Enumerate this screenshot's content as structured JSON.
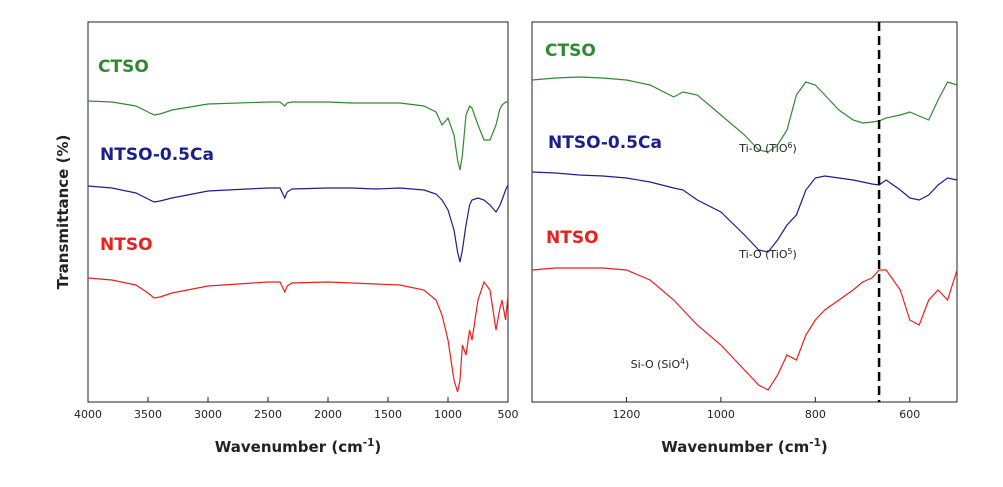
{
  "chart_data": [
    {
      "type": "line",
      "xlabel": [
        "Wavenumber (cm",
        "-1",
        ")"
      ],
      "ylabel": "Transmittance (%)",
      "xlim": [
        4000,
        500
      ],
      "xticks": [
        4000,
        3500,
        3000,
        2500,
        2000,
        1500,
        1000,
        500
      ],
      "ylim": [
        0,
        380
      ],
      "x": [
        4000,
        3800,
        3600,
        3500,
        3450,
        3400,
        3300,
        3000,
        2500,
        2400,
        2360,
        2340,
        2300,
        2000,
        1800,
        1600,
        1400,
        1200,
        1100,
        1050,
        1000,
        950,
        920,
        900,
        880,
        850,
        820,
        800,
        750,
        700,
        650,
        600,
        570,
        550,
        520,
        500
      ],
      "series": [
        {
          "name": "CTSO",
          "color": "#2e8b2e",
          "values": [
            301,
            300,
            296,
            290,
            287,
            288,
            292,
            298,
            300,
            300,
            296,
            299,
            300,
            300,
            299,
            299,
            299,
            296,
            290,
            277,
            284,
            267,
            242,
            232,
            247,
            287,
            296,
            294,
            277,
            262,
            262,
            277,
            292,
            297,
            300,
            300
          ]
        },
        {
          "name": "NTSO-0.5Ca",
          "color": "#1a1f8c",
          "values": [
            216,
            214,
            209,
            203,
            200,
            201,
            204,
            211,
            214,
            214,
            204,
            210,
            213,
            214,
            214,
            213,
            214,
            212,
            208,
            202,
            192,
            172,
            150,
            140,
            152,
            177,
            197,
            202,
            204,
            202,
            197,
            190,
            196,
            202,
            212,
            217
          ]
        },
        {
          "name": "NTSO",
          "color": "#e8201e",
          "values": [
            124,
            122,
            117,
            109,
            104,
            105,
            109,
            116,
            120,
            120,
            110,
            116,
            119,
            120,
            119,
            118,
            117,
            112,
            102,
            87,
            62,
            22,
            10,
            22,
            57,
            47,
            72,
            62,
            102,
            120,
            112,
            72,
            92,
            102,
            82,
            107
          ]
        }
      ]
    },
    {
      "type": "line",
      "xlabel": [
        "Wavenumber (cm",
        "-1",
        ")"
      ],
      "xlim": [
        1400,
        500
      ],
      "xticks": [
        1200,
        1000,
        800,
        600
      ],
      "ylim": [
        0,
        380
      ],
      "vline": 665,
      "x": [
        1400,
        1350,
        1300,
        1250,
        1200,
        1150,
        1100,
        1080,
        1050,
        1000,
        950,
        920,
        900,
        880,
        860,
        840,
        820,
        800,
        780,
        750,
        720,
        700,
        680,
        665,
        650,
        620,
        600,
        580,
        560,
        540,
        520,
        500
      ],
      "series": [
        {
          "name": "CTSO",
          "color": "#2e8b2e",
          "values": [
            322,
            324,
            325,
            324,
            322,
            317,
            305,
            310,
            307,
            287,
            267,
            252,
            250,
            257,
            272,
            307,
            320,
            317,
            307,
            292,
            282,
            279,
            280,
            281,
            284,
            287,
            290,
            286,
            282,
            302,
            320,
            317
          ]
        },
        {
          "name": "NTSO-0.5Ca",
          "color": "#1a1f8c",
          "values": [
            230,
            229,
            227,
            226,
            224,
            220,
            214,
            212,
            202,
            190,
            167,
            152,
            150,
            162,
            177,
            187,
            212,
            224,
            226,
            224,
            222,
            220,
            218,
            217,
            222,
            212,
            204,
            202,
            207,
            217,
            224,
            222
          ]
        },
        {
          "name": "NTSO",
          "color": "#e8201e",
          "values": [
            132,
            134,
            134,
            134,
            132,
            122,
            102,
            92,
            77,
            57,
            32,
            17,
            12,
            27,
            47,
            42,
            67,
            82,
            92,
            102,
            112,
            120,
            124,
            132,
            132,
            112,
            82,
            77,
            102,
            112,
            102,
            132
          ]
        }
      ],
      "annotations": [
        [
          "Ti-O (TiO",
          "6",
          ")"
        ],
        [
          "Ti-O (TiO",
          "5",
          ")"
        ],
        [
          "Si-O (SiO",
          "4",
          ")"
        ]
      ]
    }
  ]
}
